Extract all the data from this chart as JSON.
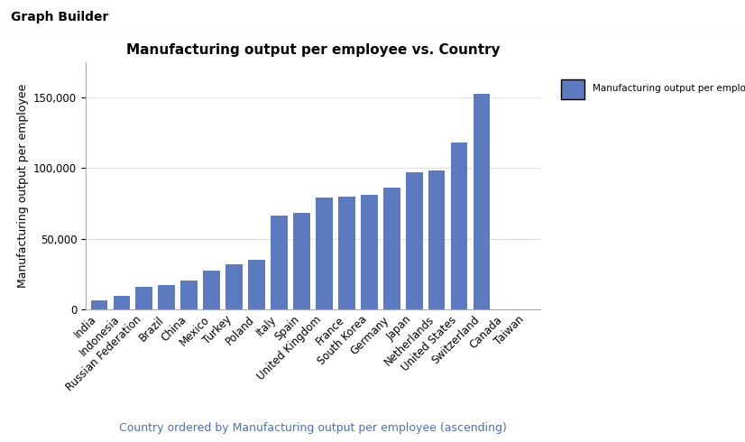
{
  "title": "Manufacturing output per employee vs. Country",
  "header": "Graph Builder",
  "ylabel": "Manufacturing output per employee",
  "footer": "Country ordered by Manufacturing output per employee (ascending)",
  "legend_label": "Manufacturing output per employee",
  "bar_color": "#5b7abf",
  "background_color": "#ffffff",
  "plot_bg_color": "#ffffff",
  "categories": [
    "India",
    "Indonesia",
    "Russian Federation",
    "Brazil",
    "China",
    "Mexico",
    "Turkey",
    "Poland",
    "Italy",
    "Spain",
    "United Kingdom",
    "France",
    "South Korea",
    "Germany",
    "Japan",
    "Netherlands",
    "United States",
    "Switzerland",
    "Canada",
    "Taiwan"
  ],
  "values": [
    6500,
    9500,
    16000,
    17000,
    20500,
    27500,
    32000,
    35000,
    66500,
    68000,
    79000,
    80000,
    81000,
    86000,
    97000,
    98500,
    118000,
    152500,
    0,
    0
  ],
  "ylim": [
    0,
    175000
  ],
  "yticks": [
    0,
    50000,
    100000,
    150000
  ],
  "title_fontsize": 11,
  "axis_fontsize": 9,
  "tick_fontsize": 8.5,
  "header_fontsize": 10,
  "footer_color": "#4472c4",
  "footer_fontsize": 9
}
